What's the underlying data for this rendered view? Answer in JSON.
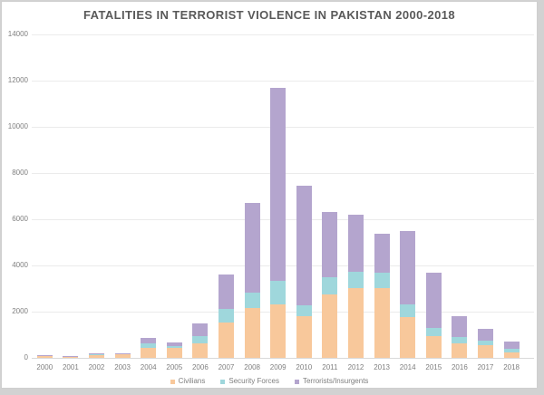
{
  "title": "FATALITIES IN TERRORIST VIOLENCE IN PAKISTAN 2000-2018",
  "chart_data": {
    "type": "bar",
    "stacked": true,
    "title": "FATALITIES IN TERRORIST VIOLENCE IN PAKISTAN 2000-2018",
    "categories": [
      "2000",
      "2001",
      "2002",
      "2003",
      "2004",
      "2005",
      "2006",
      "2007",
      "2008",
      "2009",
      "2010",
      "2011",
      "2012",
      "2013",
      "2014",
      "2015",
      "2016",
      "2017",
      "2018"
    ],
    "series": [
      {
        "name": "Civilians",
        "color": "#F8C89B",
        "values": [
          60,
          40,
          120,
          140,
          435,
          430,
          608,
          1522,
          2155,
          2324,
          1796,
          2738,
          3007,
          3001,
          1781,
          940,
          612,
          540,
          221
        ]
      },
      {
        "name": "Security Forces",
        "color": "#9FD7DC",
        "values": [
          20,
          10,
          40,
          24,
          184,
          81,
          325,
          597,
          654,
          991,
          469,
          765,
          732,
          676,
          533,
          339,
          293,
          217,
          190
        ]
      },
      {
        "name": "Terrorists/Insurgents",
        "color": "#B4A5CE",
        "values": [
          20,
          15,
          40,
          25,
          244,
          137,
          538,
          1479,
          3906,
          8389,
          5170,
          2800,
          2472,
          1702,
          3182,
          2403,
          898,
          503,
          280
        ]
      }
    ],
    "xlabel": "",
    "ylabel": "",
    "ylim": [
      0,
      14000
    ],
    "yticks": [
      0,
      2000,
      4000,
      6000,
      8000,
      10000,
      12000,
      14000
    ],
    "grid": true,
    "legend_position": "bottom"
  },
  "appearance": {
    "title_color": "#595959",
    "axis_text_color": "#7F7F7F",
    "gridline_color": "#EBEBEB",
    "axis_line_color": "#D9D9D9",
    "background": "#FFFFFF",
    "frame_color": "#D2D2D2"
  }
}
